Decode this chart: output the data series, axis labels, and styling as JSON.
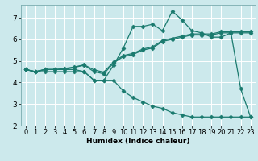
{
  "xlabel": "Humidex (Indice chaleur)",
  "bg_color": "#cce9ec",
  "grid_color": "#ffffff",
  "line_color": "#1a7a6e",
  "xlim": [
    -0.5,
    23.5
  ],
  "ylim": [
    2.0,
    7.6
  ],
  "x_ticks": [
    0,
    1,
    2,
    3,
    4,
    5,
    6,
    7,
    8,
    9,
    10,
    11,
    12,
    13,
    14,
    15,
    16,
    17,
    18,
    19,
    20,
    21,
    22,
    23
  ],
  "y_ticks": [
    2,
    3,
    4,
    5,
    6,
    7
  ],
  "series": [
    [
      4.6,
      4.5,
      4.6,
      4.6,
      4.6,
      4.6,
      4.5,
      4.1,
      4.1,
      4.8,
      5.6,
      6.6,
      6.6,
      6.7,
      6.4,
      7.3,
      6.9,
      6.4,
      6.3,
      6.1,
      6.1,
      6.3,
      3.7,
      2.4
    ],
    [
      4.6,
      4.5,
      4.6,
      4.6,
      4.6,
      4.7,
      4.8,
      4.5,
      4.4,
      4.9,
      5.2,
      5.3,
      5.5,
      5.6,
      5.9,
      6.0,
      6.1,
      6.2,
      6.2,
      6.2,
      6.3,
      6.3,
      6.3,
      6.3
    ],
    [
      4.6,
      4.5,
      4.6,
      4.6,
      4.65,
      4.72,
      4.82,
      4.58,
      4.48,
      4.95,
      5.25,
      5.35,
      5.55,
      5.65,
      5.95,
      6.05,
      6.15,
      6.25,
      6.25,
      6.25,
      6.35,
      6.35,
      6.35,
      6.35
    ],
    [
      4.6,
      4.5,
      4.5,
      4.5,
      4.5,
      4.5,
      4.5,
      4.1,
      4.1,
      4.1,
      3.6,
      3.3,
      3.1,
      2.9,
      2.8,
      2.6,
      2.5,
      2.4,
      2.4,
      2.4,
      2.4,
      2.4,
      2.4,
      2.4
    ]
  ],
  "tick_fontsize": 6.0,
  "xlabel_fontsize": 6.5,
  "marker_size": 2.5,
  "linewidth": 0.9
}
